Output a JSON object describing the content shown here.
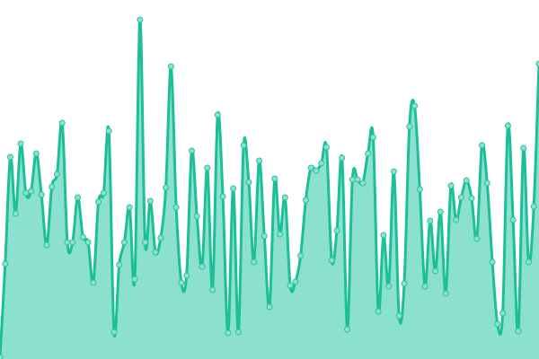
{
  "chart_data": {
    "type": "area",
    "title": "",
    "xlabel": "",
    "ylabel": "",
    "grid": false,
    "axes_visible": false,
    "legend": "none",
    "smooth": true,
    "markers": true,
    "ylim": [
      0,
      400
    ],
    "colors": {
      "line": "#1dbf98",
      "fill": "#8be0ce",
      "marker_fill": "#8be0ce",
      "marker_stroke": "#2cc4a0"
    },
    "values": [
      2,
      106,
      225,
      162,
      240,
      185,
      187,
      229,
      183,
      127,
      192,
      206,
      263,
      130,
      130,
      180,
      136,
      130,
      85,
      175,
      185,
      254,
      30,
      105,
      130,
      169,
      89,
      378,
      130,
      176,
      119,
      135,
      191,
      326,
      169,
      85,
      93,
      232,
      159,
      103,
      213,
      77,
      272,
      181,
      29,
      190,
      30,
      238,
      197,
      108,
      221,
      137,
      58,
      201,
      139,
      180,
      82,
      86,
      115,
      177,
      213,
      210,
      218,
      236,
      110,
      143,
      224,
      33,
      200,
      200,
      196,
      229,
      247,
      53,
      138,
      81,
      209,
      48,
      84,
      259,
      282,
      189,
      81,
      154,
      98,
      164,
      73,
      193,
      155,
      180,
      199,
      179,
      134,
      238,
      196,
      108,
      39,
      51,
      260,
      155,
      31,
      235,
      108,
      170,
      329
    ]
  }
}
